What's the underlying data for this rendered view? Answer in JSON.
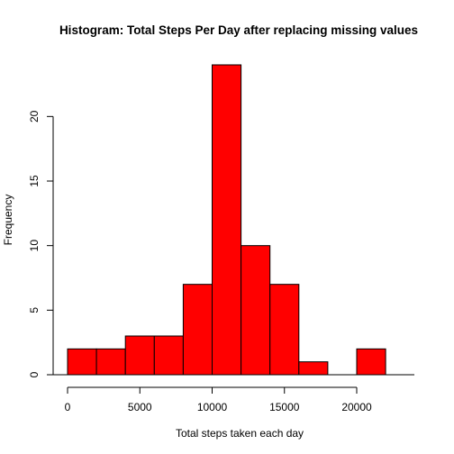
{
  "chart_data": {
    "type": "bar",
    "title": "Histogram: Total Steps Per Day after replacing missing values",
    "xlabel": "Total steps taken each day",
    "ylabel": "Frequency",
    "bins": [
      {
        "start": 0,
        "end": 2000,
        "count": 2
      },
      {
        "start": 2000,
        "end": 4000,
        "count": 2
      },
      {
        "start": 4000,
        "end": 6000,
        "count": 3
      },
      {
        "start": 6000,
        "end": 8000,
        "count": 3
      },
      {
        "start": 8000,
        "end": 10000,
        "count": 7
      },
      {
        "start": 10000,
        "end": 12000,
        "count": 24
      },
      {
        "start": 12000,
        "end": 14000,
        "count": 10
      },
      {
        "start": 14000,
        "end": 16000,
        "count": 7
      },
      {
        "start": 16000,
        "end": 18000,
        "count": 1
      },
      {
        "start": 18000,
        "end": 20000,
        "count": 0
      },
      {
        "start": 20000,
        "end": 22000,
        "count": 2
      }
    ],
    "xlim": [
      -1000,
      24000
    ],
    "ylim": [
      0,
      24
    ],
    "x_ticks": [
      0,
      5000,
      10000,
      15000,
      20000
    ],
    "x_tick_labels": [
      "0",
      "5000",
      "10000",
      "15000",
      "20000"
    ],
    "y_ticks": [
      0,
      5,
      10,
      15,
      20
    ],
    "y_tick_labels": [
      "0",
      "5",
      "10",
      "15",
      "20"
    ],
    "bar_color": "#ff0000",
    "grid": false,
    "legend": "none"
  }
}
